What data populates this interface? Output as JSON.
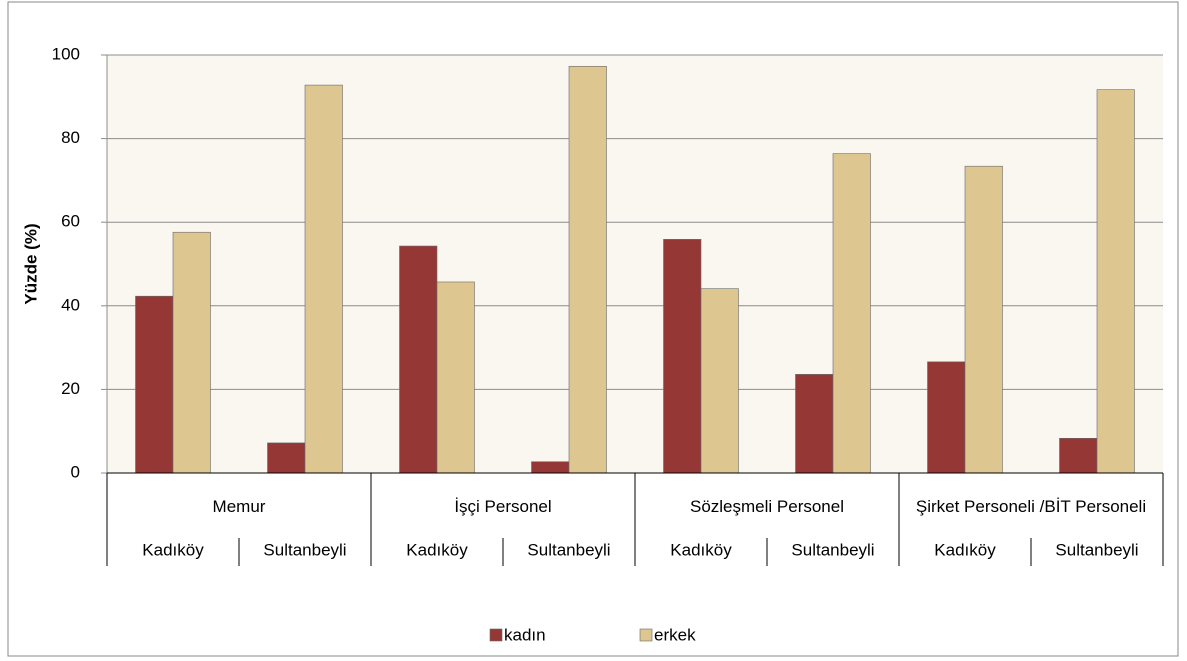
{
  "chart_data": {
    "type": "grouped-bar",
    "ylabel": "Yüzde (%)",
    "groups": [
      "Memur",
      "İşçi Personel",
      "Sözleşmeli Personel",
      "Şirket Personeli /BİT Personeli"
    ],
    "categories": [
      "Kadıköy",
      "Sultanbeyli",
      "Kadıköy",
      "Sultanbeyli",
      "Kadıköy",
      "Sultanbeyli",
      "Kadıköy",
      "Sultanbeyli"
    ],
    "series": [
      {
        "name": "kadın",
        "color": "#953735",
        "values": [
          42.3,
          7.2,
          54.3,
          2.7,
          55.9,
          23.6,
          26.6,
          8.3
        ]
      },
      {
        "name": "erkek",
        "color": "#ddc68f",
        "values": [
          57.6,
          92.8,
          45.7,
          97.3,
          44.1,
          76.4,
          73.4,
          91.7
        ]
      }
    ],
    "ylim": [
      0,
      100
    ],
    "yticks": [
      0,
      20,
      40,
      60,
      80,
      100
    ],
    "grid": true,
    "legend": "bottom"
  }
}
